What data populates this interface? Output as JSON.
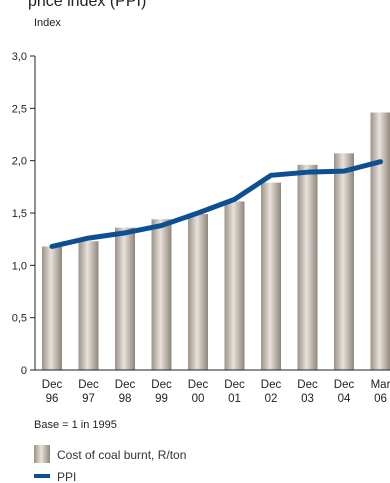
{
  "chart_data": {
    "type": "bar",
    "title": "price index (PPI)",
    "ylabel": "Index",
    "ylim": [
      0,
      3.0
    ],
    "yticks": [
      "0",
      "0,5",
      "1,0",
      "1,5",
      "2,0",
      "2,5",
      "3,0"
    ],
    "ytick_values": [
      0,
      0.5,
      1.0,
      1.5,
      2.0,
      2.5,
      3.0
    ],
    "categories": [
      {
        "top": "Dec",
        "bottom": "96"
      },
      {
        "top": "Dec",
        "bottom": "97"
      },
      {
        "top": "Dec",
        "bottom": "98"
      },
      {
        "top": "Dec",
        "bottom": "99"
      },
      {
        "top": "Dec",
        "bottom": "00"
      },
      {
        "top": "Dec",
        "bottom": "01"
      },
      {
        "top": "Dec",
        "bottom": "02"
      },
      {
        "top": "Dec",
        "bottom": "03"
      },
      {
        "top": "Dec",
        "bottom": "04"
      },
      {
        "top": "Mar",
        "bottom": "06"
      }
    ],
    "series": [
      {
        "name": "Cost of coal burnt, R/ton",
        "kind": "bar",
        "color": "#b3aaa0",
        "values": [
          1.18,
          1.23,
          1.36,
          1.44,
          1.49,
          1.61,
          1.79,
          1.96,
          2.07,
          2.46
        ]
      },
      {
        "name": "PPI",
        "kind": "line",
        "color": "#0d4f93",
        "values": [
          1.18,
          1.26,
          1.31,
          1.38,
          1.5,
          1.63,
          1.86,
          1.89,
          1.9,
          1.99
        ]
      }
    ],
    "note": "Base = 1 in 1995",
    "grid": false,
    "legend_position": "bottom-left"
  }
}
